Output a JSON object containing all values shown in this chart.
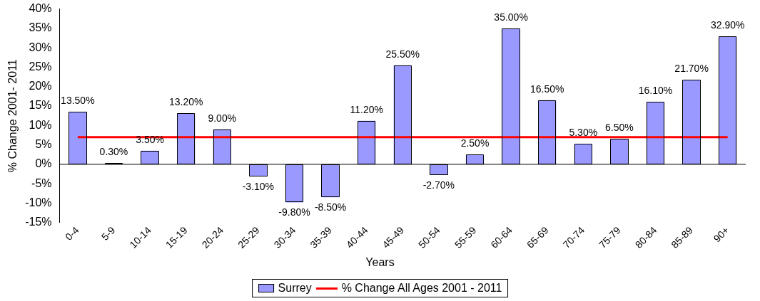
{
  "chart_data": {
    "type": "bar",
    "xlabel": "Years",
    "ylabel": "% Change 2001- 2011",
    "categories": [
      "0-4",
      "5-9",
      "10-14",
      "15-19",
      "20-24",
      "25-29",
      "30-34",
      "35-39",
      "40-44",
      "45-49",
      "50-54",
      "55-59",
      "60-64",
      "65-69",
      "70-74",
      "75-79",
      "80-84",
      "85-89",
      "90+"
    ],
    "series": [
      {
        "name": "Surrey",
        "color": "#9999ff",
        "values": [
          13.5,
          0.3,
          3.5,
          13.2,
          9.0,
          -3.1,
          -9.8,
          -8.5,
          11.2,
          25.5,
          -2.7,
          2.5,
          35.0,
          16.5,
          5.3,
          6.5,
          16.1,
          21.7,
          32.9
        ],
        "value_labels": [
          "13.50%",
          "0.30%",
          "3.50%",
          "13.20%",
          "9.00%",
          "-3.10%",
          "-9.80%",
          "-8.50%",
          "11.20%",
          "25.50%",
          "-2.70%",
          "2.50%",
          "35.00%",
          "16.50%",
          "5.30%",
          "6.50%",
          "16.10%",
          "21.70%",
          "32.90%"
        ]
      },
      {
        "type": "line",
        "name": "% Change All Ages 2001 - 2011",
        "color": "#ff0000",
        "values": [
          7,
          7,
          7,
          7,
          7,
          7,
          7,
          7,
          7,
          7,
          7,
          7,
          7,
          7,
          7,
          7,
          7,
          7,
          7
        ]
      }
    ],
    "ylim": [
      -15,
      40
    ],
    "yticks": [
      {
        "value": -15,
        "label": "-15%"
      },
      {
        "value": -10,
        "label": "-10%"
      },
      {
        "value": -5,
        "label": "-5%"
      },
      {
        "value": 0,
        "label": "0%"
      },
      {
        "value": 5,
        "label": "5%"
      },
      {
        "value": 10,
        "label": "10%"
      },
      {
        "value": 15,
        "label": "15%"
      },
      {
        "value": 20,
        "label": "20%"
      },
      {
        "value": 25,
        "label": "25%"
      },
      {
        "value": 30,
        "label": "30%"
      },
      {
        "value": 35,
        "label": "35%"
      },
      {
        "value": 40,
        "label": "40%"
      }
    ],
    "legend": "bottom"
  }
}
